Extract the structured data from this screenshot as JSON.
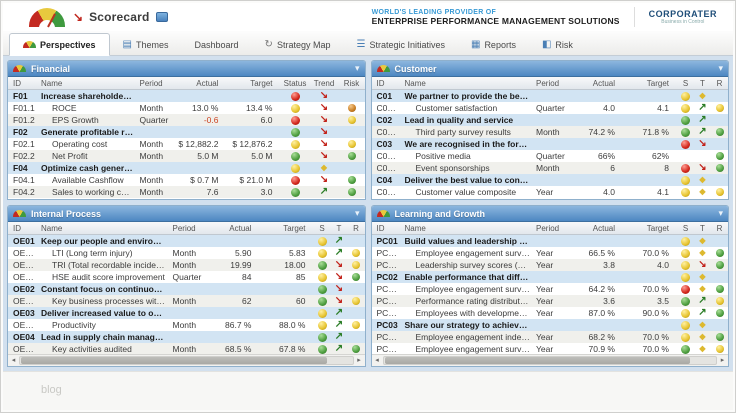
{
  "header": {
    "app_title": "Scorecard",
    "tagline_small": "WORLD'S LEADING PROVIDER OF",
    "tagline_large": "ENTERPRISE PERFORMANCE MANAGEMENT SOLUTIONS",
    "brand": "CORPORATER",
    "brand_tagline": "Business in Control"
  },
  "tabs": [
    {
      "label": "Perspectives",
      "active": true
    },
    {
      "label": "Themes",
      "active": false
    },
    {
      "label": "Dashboard",
      "active": false
    },
    {
      "label": "Strategy Map",
      "active": false
    },
    {
      "label": "Strategic Initiatives",
      "active": false
    },
    {
      "label": "Reports",
      "active": false
    },
    {
      "label": "Risk",
      "active": false
    }
  ],
  "colors": {
    "panel_header_blue": "#4d87c2",
    "group_row_blue": "#d2e4f3",
    "status_red": "#d3271c",
    "status_yellow": "#e6c32e",
    "status_green": "#4d9e3f",
    "status_orange": "#c97d22"
  },
  "panels": [
    {
      "title": "Financial",
      "wide_flags": true,
      "scrollbar": false,
      "columns": [
        "ID",
        "Name",
        "Period",
        "Actual",
        "Target",
        "Status",
        "Trend",
        "Risk"
      ],
      "rows": [
        {
          "id": "F01",
          "group": true,
          "name": "Increase shareholder value",
          "s": "red",
          "t": "down"
        },
        {
          "id": "F01.1",
          "name": "ROCE",
          "period": "Month",
          "actual": "13.0 %",
          "target": "13.4 %",
          "s": "yellow",
          "t": "down",
          "r": "orange"
        },
        {
          "id": "F01.2",
          "name": "EPS Growth",
          "period": "Quarter",
          "actual": "-0.6",
          "neg": true,
          "target": "6.0",
          "s": "red",
          "t": "down",
          "r": "yellow"
        },
        {
          "id": "F02",
          "group": true,
          "name": "Generate profitable revenue growth",
          "s": "green",
          "t": "down"
        },
        {
          "id": "F02.1",
          "name": "Operating cost",
          "period": "Month",
          "actual": "$ 12,882.2",
          "target": "$ 12,876.2",
          "s": "yellow",
          "t": "down",
          "r": "yellow"
        },
        {
          "id": "F02.2",
          "name": "Net Profit",
          "period": "Month",
          "actual": "5.0   M",
          "target": "5.0   M",
          "s": "green",
          "t": "down",
          "r": "green"
        },
        {
          "id": "F04",
          "group": true,
          "name": "Optimize cash generation",
          "s": "yellow",
          "t": "steady"
        },
        {
          "id": "F04.1",
          "name": "Available Cashflow",
          "period": "Month",
          "actual": "$   0.7   M",
          "target": "$   21.0   M",
          "s": "red",
          "t": "down",
          "r": "green"
        },
        {
          "id": "F04.2",
          "name": "Sales to working capital ratio",
          "period": "Month",
          "actual": "7.6",
          "target": "3.0",
          "s": "green",
          "t": "up",
          "r": "green"
        }
      ]
    },
    {
      "title": "Customer",
      "wide_flags": false,
      "scrollbar": false,
      "columns": [
        "ID",
        "Name",
        "Period",
        "Actual",
        "Target",
        "S",
        "T",
        "R"
      ],
      "rows": [
        {
          "id": "C01",
          "group": true,
          "name": "We partner to provide the best products",
          "s": "yellow",
          "t": "steady"
        },
        {
          "id": "C01.1",
          "name": "Customer satisfaction",
          "period": "Quarter",
          "actual": "4.0",
          "target": "4.1",
          "s": "yellow",
          "t": "up",
          "r": "yellow"
        },
        {
          "id": "C02",
          "group": true,
          "name": "Lead in quality and service",
          "s": "green",
          "t": "up"
        },
        {
          "id": "C02.1",
          "name": "Third party survey results",
          "period": "Month",
          "actual": "74.2 %",
          "target": "71.8 %",
          "s": "green",
          "t": "up",
          "r": "green"
        },
        {
          "id": "C03",
          "group": true,
          "name": "We are recognised in the forefront of our industry",
          "s": "red",
          "t": "down"
        },
        {
          "id": "C03.1",
          "name": "Positive media",
          "period": "Quarter",
          "actual": "66%",
          "target": "62%",
          "r": "green"
        },
        {
          "id": "C03.2",
          "name": "Event sponsorships",
          "period": "Month",
          "actual": "6",
          "target": "8",
          "s": "red",
          "t": "down",
          "r": "green"
        },
        {
          "id": "C04",
          "group": true,
          "name": "Deliver the best value to consumers",
          "s": "yellow",
          "t": "steady"
        },
        {
          "id": "C04.1",
          "name": "Customer value composite",
          "period": "Year",
          "actual": "4.0",
          "target": "4.1",
          "s": "yellow",
          "t": "steady",
          "r": "yellow"
        }
      ]
    },
    {
      "title": "Internal Process",
      "wide_flags": false,
      "scrollbar": true,
      "columns": [
        "ID",
        "Name",
        "Period",
        "Actual",
        "Target",
        "S",
        "T",
        "R"
      ],
      "rows": [
        {
          "id": "OE01",
          "group": true,
          "name": "Keep our people and environment safe",
          "s": "yellow",
          "t": "up"
        },
        {
          "id": "OE01.1",
          "name": "LTI (Long term injury)",
          "period": "Month",
          "actual": "5.90",
          "target": "5.83",
          "s": "yellow",
          "t": "up",
          "r": "yellow"
        },
        {
          "id": "OE01.2",
          "name": "TRI (Total recordable incidents)",
          "period": "Month",
          "actual": "19.99",
          "target": "18.00",
          "s": "green",
          "t": "down",
          "r": "yellow"
        },
        {
          "id": "OE01.4",
          "name": "HSE audit score improvement",
          "period": "Quarter",
          "actual": "84",
          "target": "85",
          "s": "yellow",
          "t": "down",
          "r": "green"
        },
        {
          "id": "OE02",
          "group": true,
          "name": "Constant focus on continuous improvement",
          "s": "green",
          "t": "down"
        },
        {
          "id": "OE02.1",
          "name": "Key business processes with completed quality r...",
          "period": "Month",
          "actual": "62",
          "target": "60",
          "s": "green",
          "t": "down",
          "r": "yellow"
        },
        {
          "id": "OE03",
          "group": true,
          "name": "Deliver increased value to our customers",
          "s": "yellow",
          "t": "up"
        },
        {
          "id": "OE03.1",
          "name": "Productivity",
          "period": "Month",
          "actual": "86.7 %",
          "target": "88.0 %",
          "s": "yellow",
          "t": "up",
          "r": "yellow"
        },
        {
          "id": "OE04",
          "group": true,
          "name": "Lead in supply chain management",
          "s": "green",
          "t": "up"
        },
        {
          "id": "OE04.1",
          "name": "Key activities audited",
          "period": "Month",
          "actual": "68.5 %",
          "target": "67.8 %",
          "s": "green",
          "t": "up",
          "r": "green"
        }
      ]
    },
    {
      "title": "Learning and Growth",
      "wide_flags": false,
      "scrollbar": true,
      "columns": [
        "ID",
        "Name",
        "Period",
        "Actual",
        "Target",
        "S",
        "T",
        "R"
      ],
      "rows": [
        {
          "id": "PC01",
          "group": true,
          "name": "Build values and leadership practices",
          "s": "yellow",
          "t": "steady"
        },
        {
          "id": "PC01.1",
          "name": "Employee engagement survey",
          "period": "Year",
          "actual": "66.5 %",
          "target": "70.0 %",
          "s": "yellow",
          "t": "steady",
          "r": "green"
        },
        {
          "id": "PC01.2",
          "name": "Leadership survey scores (360s)",
          "period": "Year",
          "actual": "3.8",
          "target": "4.0",
          "s": "yellow",
          "t": "down",
          "r": "green"
        },
        {
          "id": "PC02",
          "group": true,
          "name": "Enable performance that differentiates our busin...",
          "s": "yellow",
          "t": "steady"
        },
        {
          "id": "PC02.1",
          "name": "Employee engagement survey",
          "period": "Year",
          "actual": "64.2 %",
          "target": "70.0 %",
          "s": "red",
          "t": "steady",
          "r": "green"
        },
        {
          "id": "PC02.2",
          "name": "Performance rating distribution",
          "period": "Year",
          "actual": "3.6",
          "target": "3.5",
          "s": "green",
          "t": "up",
          "r": "yellow"
        },
        {
          "id": "PC02.3",
          "name": "Employees with development plans",
          "period": "Year",
          "actual": "87.0 %",
          "target": "90.0 %",
          "s": "yellow",
          "t": "up",
          "r": "green"
        },
        {
          "id": "PC03",
          "group": true,
          "name": "Share our strategy to achieve our goals",
          "s": "yellow",
          "t": "steady"
        },
        {
          "id": "PC03.1",
          "name": "Employee engagement index - overall",
          "period": "Year",
          "actual": "68.2 %",
          "target": "70.0 %",
          "s": "yellow",
          "t": "steady",
          "r": "green"
        },
        {
          "id": "PC03.2",
          "name": "Employee engagement survey – questions on strategy",
          "period": "Year",
          "actual": "70.9 %",
          "target": "70.0 %",
          "s": "green",
          "t": "steady",
          "r": "yellow"
        }
      ]
    }
  ],
  "footer": {
    "watermark": "blog"
  }
}
